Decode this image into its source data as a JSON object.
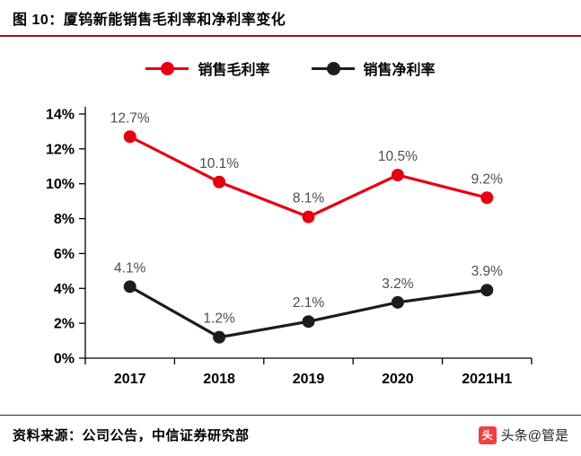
{
  "header": {
    "title": "图 10：厦钨新能销售毛利率和净利率变化"
  },
  "chart_data": {
    "type": "line",
    "categories": [
      "2017",
      "2018",
      "2019",
      "2020",
      "2021H1"
    ],
    "series": [
      {
        "name": "销售毛利率",
        "color": "#e60012",
        "values": [
          12.7,
          10.1,
          8.1,
          10.5,
          9.2
        ],
        "labels": [
          "12.7%",
          "10.1%",
          "8.1%",
          "10.5%",
          "9.2%"
        ]
      },
      {
        "name": "销售净利率",
        "color": "#1c1c1c",
        "values": [
          4.1,
          1.2,
          2.1,
          3.2,
          3.9
        ],
        "labels": [
          "4.1%",
          "1.2%",
          "2.1%",
          "3.2%",
          "3.9%"
        ]
      }
    ],
    "ylim": [
      0,
      14
    ],
    "ytick_step": 2,
    "ytick_labels": [
      "0%",
      "2%",
      "4%",
      "6%",
      "8%",
      "10%",
      "12%",
      "14%"
    ],
    "grid": false,
    "legend_position": "top"
  },
  "footer": {
    "source": "资料来源：公司公告，中信证券研究部"
  },
  "watermark": {
    "icon_glyph": "头",
    "text": "头条@管是"
  },
  "colors": {
    "accent_red": "#e60012",
    "series_black": "#1c1c1c",
    "header_rule": "#9e1418",
    "axis": "#000000",
    "label_gray": "#4d4d4d"
  }
}
